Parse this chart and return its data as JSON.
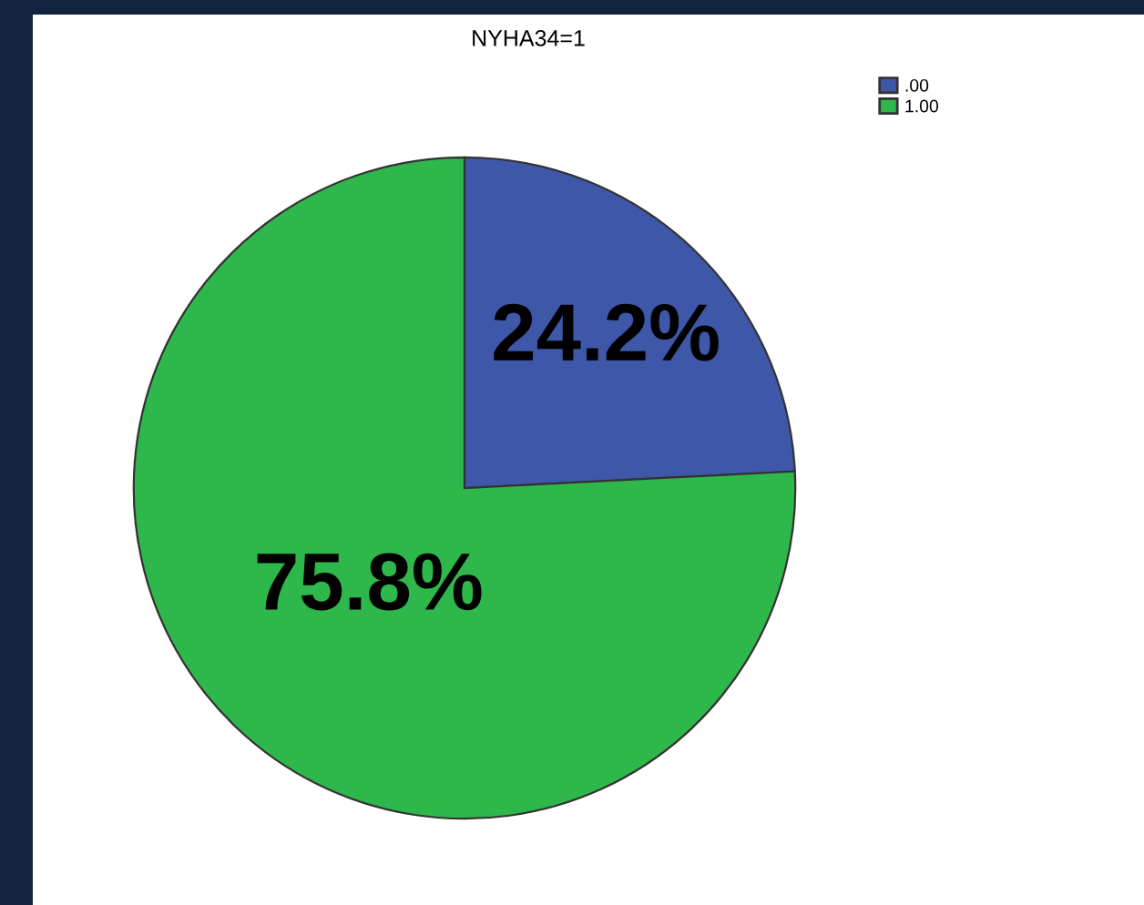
{
  "chart_data": {
    "type": "pie",
    "title": "NYHA34=1",
    "categories": [
      ".00",
      "1.00"
    ],
    "values": [
      24.2,
      75.8
    ],
    "colors": [
      "#3f57a9",
      "#2eb84b"
    ],
    "value_labels": [
      "24.2%",
      "75.8%"
    ],
    "legend": "top right"
  }
}
